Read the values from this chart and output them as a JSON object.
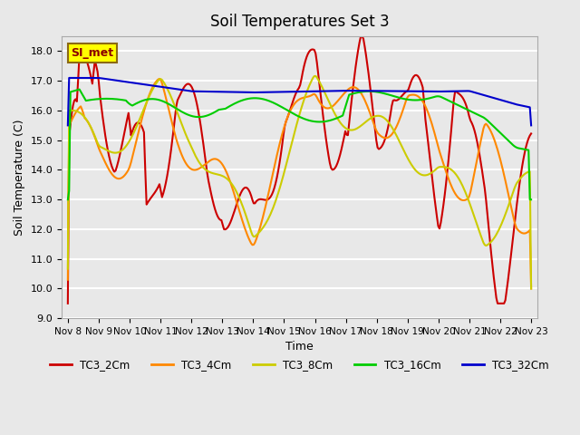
{
  "title": "Soil Temperatures Set 3",
  "xlabel": "Time",
  "ylabel": "Soil Temperature (C)",
  "ylim": [
    9.0,
    18.5
  ],
  "yticks": [
    9.0,
    10.0,
    11.0,
    12.0,
    13.0,
    14.0,
    15.0,
    16.0,
    17.0,
    18.0
  ],
  "bg_color": "#e8e8e8",
  "plot_bg_color": "#e8e8e8",
  "grid_color": "#ffffff",
  "annotation_label": "SI_met",
  "annotation_box_color": "#ffff00",
  "annotation_border_color": "#8b6914",
  "annotation_text_color": "#8b0000",
  "series_colors": {
    "TC3_2Cm": "#cc0000",
    "TC3_4Cm": "#ff8800",
    "TC3_8Cm": "#cccc00",
    "TC3_16Cm": "#00cc00",
    "TC3_32Cm": "#0000cc"
  },
  "x_labels": [
    "Nov 8",
    "Nov 9",
    "Nov 10",
    "Nov 11",
    "Nov 12",
    "Nov 13",
    "Nov 14",
    "Nov 15",
    "Nov 16",
    "Nov 17",
    "Nov 18",
    "Nov 19",
    "Nov 20",
    "Nov 21",
    "Nov 22",
    "Nov 23"
  ],
  "num_points": 360
}
